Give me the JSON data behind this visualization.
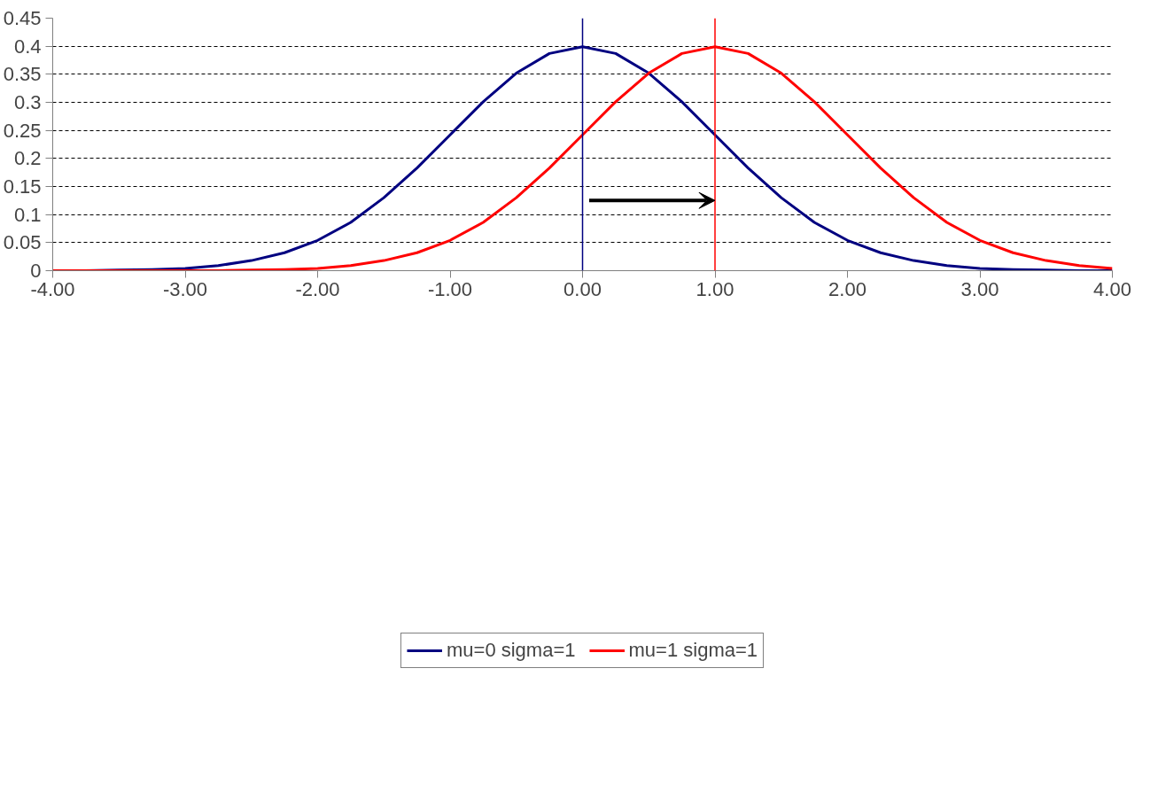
{
  "chart_data": {
    "type": "line",
    "x": [
      -4,
      -3.75,
      -3.5,
      -3.25,
      -3,
      -2.75,
      -2.5,
      -2.25,
      -2,
      -1.75,
      -1.5,
      -1.25,
      -1,
      -0.75,
      -0.5,
      -0.25,
      0,
      0.25,
      0.5,
      0.75,
      1,
      1.25,
      1.5,
      1.75,
      2,
      2.25,
      2.5,
      2.75,
      3,
      3.25,
      3.5,
      3.75,
      4
    ],
    "series": [
      {
        "name": "mu=0 sigma=1",
        "color": "#000080",
        "values": [
          0,
          0,
          0.001,
          0.002,
          0.004,
          0.009,
          0.018,
          0.032,
          0.054,
          0.086,
          0.13,
          0.183,
          0.242,
          0.301,
          0.352,
          0.387,
          0.399,
          0.387,
          0.352,
          0.301,
          0.242,
          0.183,
          0.13,
          0.086,
          0.054,
          0.032,
          0.018,
          0.009,
          0.004,
          0.002,
          0.001,
          0,
          0
        ]
      },
      {
        "name": "mu=1 sigma=1",
        "color": "#ff0000",
        "values": [
          0,
          0,
          0,
          0,
          0,
          0,
          0.001,
          0.002,
          0.004,
          0.009,
          0.018,
          0.032,
          0.054,
          0.086,
          0.13,
          0.183,
          0.242,
          0.301,
          0.352,
          0.387,
          0.399,
          0.387,
          0.352,
          0.301,
          0.242,
          0.183,
          0.13,
          0.086,
          0.054,
          0.032,
          0.018,
          0.009,
          0.004
        ]
      }
    ],
    "xlim": [
      -4,
      4
    ],
    "xticks": [
      {
        "value": -4,
        "label": "-4.00"
      },
      {
        "value": -3,
        "label": "-3.00"
      },
      {
        "value": -2,
        "label": "-2.00"
      },
      {
        "value": -1,
        "label": "-1.00"
      },
      {
        "value": 0,
        "label": "0.00"
      },
      {
        "value": 1,
        "label": "1.00"
      },
      {
        "value": 2,
        "label": "2.00"
      },
      {
        "value": 3,
        "label": "3.00"
      },
      {
        "value": 4,
        "label": "4.00"
      }
    ],
    "ylim": [
      0,
      0.45
    ],
    "yticks": [
      0,
      0.05,
      0.1,
      0.15,
      0.2,
      0.25,
      0.3,
      0.35,
      0.4,
      0.45
    ],
    "ref_lines": [
      {
        "axis": "x",
        "value": 0,
        "color": "#000080"
      },
      {
        "axis": "x",
        "value": 1,
        "color": "#ff0000"
      }
    ],
    "grid": "y",
    "legend": "bottom",
    "marker": "none",
    "line_style": "solid"
  }
}
